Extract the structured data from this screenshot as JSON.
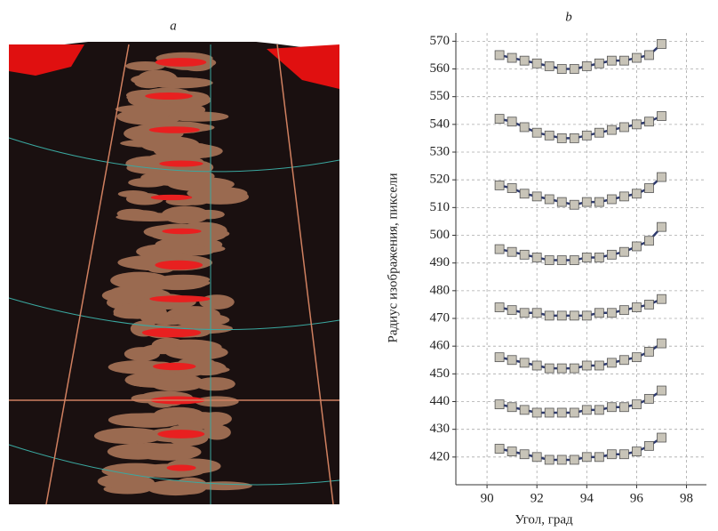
{
  "panel_labels": [
    "a",
    "b"
  ],
  "chart_data": {
    "type": "scatter",
    "xlabel": "Угол, град",
    "ylabel": "Радиус изображения, пиксели",
    "xlim": [
      88.75,
      98.8
    ],
    "ylim": [
      410,
      573
    ],
    "xticks": [
      90,
      92,
      94,
      96,
      98
    ],
    "yticks": [
      420,
      430,
      440,
      450,
      460,
      470,
      480,
      490,
      500,
      510,
      520,
      530,
      540,
      550,
      560,
      570
    ],
    "grid": true,
    "marker_color": "#c8c4b8",
    "line_color": "#2e3a6e",
    "x": [
      90.5,
      91,
      91.5,
      92,
      92.5,
      93,
      93.5,
      94,
      94.5,
      95,
      95.5,
      96,
      96.5,
      97
    ],
    "series": [
      {
        "values": [
          423,
          422,
          421,
          420,
          419,
          419,
          419,
          420,
          420,
          421,
          421,
          422,
          424,
          427
        ]
      },
      {
        "values": [
          439,
          438,
          437,
          436,
          436,
          436,
          436,
          437,
          437,
          438,
          438,
          439,
          441,
          444
        ]
      },
      {
        "values": [
          456,
          455,
          454,
          453,
          452,
          452,
          452,
          453,
          453,
          454,
          455,
          456,
          458,
          461
        ]
      },
      {
        "values": [
          474,
          473,
          472,
          472,
          471,
          471,
          471,
          471,
          472,
          472,
          473,
          474,
          475,
          477
        ]
      },
      {
        "values": [
          495,
          494,
          493,
          492,
          491,
          491,
          491,
          492,
          492,
          493,
          494,
          496,
          498,
          503
        ]
      },
      {
        "values": [
          518,
          517,
          515,
          514,
          513,
          512,
          511,
          512,
          512,
          513,
          514,
          515,
          517,
          521
        ]
      },
      {
        "values": [
          542,
          541,
          539,
          537,
          536,
          535,
          535,
          536,
          537,
          538,
          539,
          540,
          541,
          543
        ]
      },
      {
        "values": [
          565,
          564,
          563,
          562,
          561,
          560,
          560,
          561,
          562,
          563,
          563,
          564,
          565,
          569
        ]
      }
    ]
  }
}
